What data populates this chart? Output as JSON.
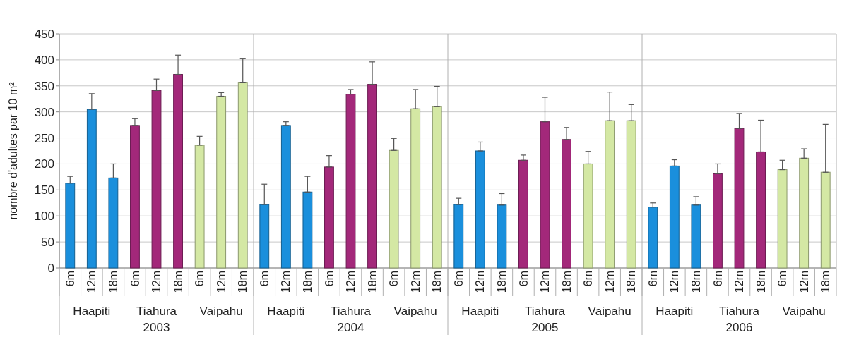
{
  "chart_data": {
    "type": "bar",
    "ylabel": "nombre d'adultes par 10 m²",
    "categories": [
      "6m",
      "12m",
      "18m",
      "6m",
      "12m",
      "18m",
      "6m",
      "12m",
      "18m",
      "6m",
      "12m",
      "18m",
      "6m",
      "12m",
      "18m",
      "6m",
      "12m",
      "18m",
      "6m",
      "12m",
      "18m",
      "6m",
      "12m",
      "18m",
      "6m",
      "12m",
      "18m",
      "6m",
      "12m",
      "18m",
      "6m",
      "12m",
      "18m",
      "6m",
      "12m",
      "18m"
    ],
    "values": [
      163,
      305,
      173,
      274,
      341,
      372,
      236,
      330,
      357,
      122,
      274,
      146,
      194,
      334,
      353,
      226,
      306,
      310,
      122,
      225,
      121,
      207,
      281,
      247,
      200,
      283,
      283,
      117,
      196,
      121,
      181,
      268,
      223,
      189,
      211,
      184
    ],
    "errors": [
      [
        163,
        176
      ],
      [
        305,
        335
      ],
      [
        173,
        200
      ],
      [
        274,
        287
      ],
      [
        341,
        363
      ],
      [
        372,
        409
      ],
      [
        236,
        253
      ],
      [
        330,
        337
      ],
      [
        357,
        403
      ],
      [
        122,
        161
      ],
      [
        274,
        281
      ],
      [
        146,
        176
      ],
      [
        194,
        216
      ],
      [
        334,
        343
      ],
      [
        353,
        396
      ],
      [
        226,
        249
      ],
      [
        306,
        343
      ],
      [
        310,
        349
      ],
      [
        122,
        134
      ],
      [
        225,
        242
      ],
      [
        121,
        143
      ],
      [
        207,
        217
      ],
      [
        281,
        328
      ],
      [
        247,
        270
      ],
      [
        200,
        224
      ],
      [
        283,
        338
      ],
      [
        283,
        314
      ],
      [
        117,
        125
      ],
      [
        196,
        208
      ],
      [
        121,
        137
      ],
      [
        181,
        200
      ],
      [
        268,
        297
      ],
      [
        223,
        284
      ],
      [
        189,
        207
      ],
      [
        211,
        229
      ],
      [
        184,
        276
      ]
    ],
    "colors": [
      "#1a8fdc",
      "#1a8fdc",
      "#1a8fdc",
      "#a3287a",
      "#a3287a",
      "#a3287a",
      "#d4e8a4",
      "#d4e8a4",
      "#d4e8a4",
      "#1a8fdc",
      "#1a8fdc",
      "#1a8fdc",
      "#a3287a",
      "#a3287a",
      "#a3287a",
      "#d4e8a4",
      "#d4e8a4",
      "#d4e8a4",
      "#1a8fdc",
      "#1a8fdc",
      "#1a8fdc",
      "#a3287a",
      "#a3287a",
      "#a3287a",
      "#d4e8a4",
      "#d4e8a4",
      "#d4e8a4",
      "#1a8fdc",
      "#1a8fdc",
      "#1a8fdc",
      "#a3287a",
      "#a3287a",
      "#a3287a",
      "#d4e8a4",
      "#d4e8a4",
      "#d4e8a4"
    ],
    "ylim": [
      0,
      450
    ],
    "yticks": [
      0,
      50,
      100,
      150,
      200,
      250,
      300,
      350,
      400,
      450
    ],
    "grid": "y",
    "annotations": [
      "Haapiti",
      "Tiahura",
      "Vaipahu",
      "Haapiti",
      "Tiahura",
      "Vaipahu",
      "Haapiti",
      "Tiahura",
      "Vaipahu",
      "Haapiti",
      "Tiahura",
      "Vaipahu",
      "2003",
      "2004",
      "2005",
      "2006"
    ]
  }
}
